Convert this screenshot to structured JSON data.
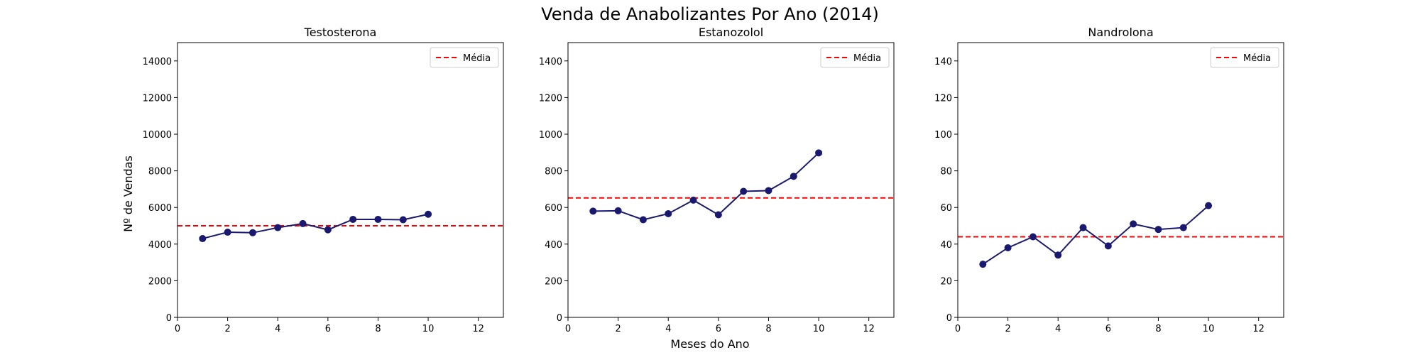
{
  "figure": {
    "title": "Venda de Anabolizantes Por Ano (2014)",
    "xlabel": "Meses do Ano",
    "ylabel": "Nº de Vendas"
  },
  "colors": {
    "series": "#191970",
    "mean_line": "#ff0000",
    "axes": "#000000",
    "background": "#ffffff"
  },
  "chart_data": [
    {
      "type": "line",
      "title": "Testosterona",
      "x": [
        1,
        2,
        3,
        4,
        5,
        6,
        7,
        8,
        9,
        10
      ],
      "y": [
        4300,
        4650,
        4620,
        4900,
        5120,
        4780,
        5350,
        5350,
        5330,
        5630
      ],
      "xlim": [
        0,
        13
      ],
      "ylim": [
        0,
        15000
      ],
      "xticks": [
        0,
        2,
        4,
        6,
        8,
        10,
        12
      ],
      "yticks": [
        0,
        2000,
        4000,
        6000,
        8000,
        10000,
        12000,
        14000
      ],
      "mean": 5000,
      "legend": {
        "label": "Média",
        "position": "top-right"
      },
      "grid": false
    },
    {
      "type": "line",
      "title": "Estanozolol",
      "x": [
        1,
        2,
        3,
        4,
        5,
        6,
        7,
        8,
        9,
        10
      ],
      "y": [
        580,
        582,
        533,
        566,
        640,
        560,
        688,
        692,
        770,
        898
      ],
      "xlim": [
        0,
        13
      ],
      "ylim": [
        0,
        1500
      ],
      "xticks": [
        0,
        2,
        4,
        6,
        8,
        10,
        12
      ],
      "yticks": [
        0,
        200,
        400,
        600,
        800,
        1000,
        1200,
        1400
      ],
      "mean": 652,
      "legend": {
        "label": "Média",
        "position": "top-right"
      },
      "grid": false
    },
    {
      "type": "line",
      "title": "Nandrolona",
      "x": [
        1,
        2,
        3,
        4,
        5,
        6,
        7,
        8,
        9,
        10
      ],
      "y": [
        29,
        38,
        44,
        34,
        49,
        39,
        51,
        48,
        49,
        61
      ],
      "xlim": [
        0,
        13
      ],
      "ylim": [
        0,
        150
      ],
      "xticks": [
        0,
        2,
        4,
        6,
        8,
        10,
        12
      ],
      "yticks": [
        0,
        20,
        40,
        60,
        80,
        100,
        120,
        140
      ],
      "mean": 44,
      "legend": {
        "label": "Média",
        "position": "top-right"
      },
      "grid": false
    }
  ]
}
